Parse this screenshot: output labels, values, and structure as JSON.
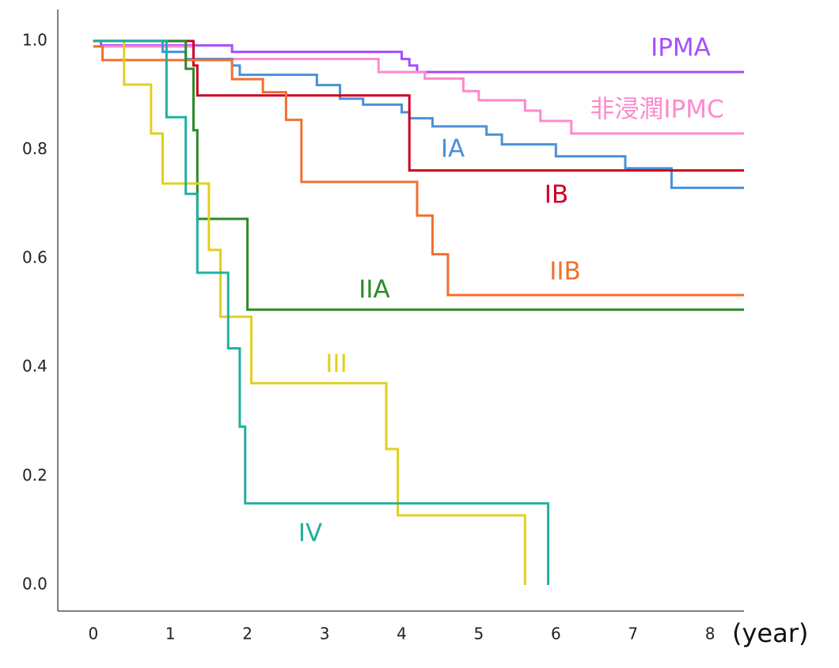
{
  "chart_data": {
    "type": "step-line",
    "x_label": "(year)",
    "xlim": [
      -0.46,
      8.44
    ],
    "ylim": [
      -0.048,
      1.058
    ],
    "xticks": [
      0,
      1,
      2,
      3,
      4,
      5,
      6,
      7,
      8
    ],
    "yticks": [
      {
        "value": 0,
        "label": "0.0"
      },
      0.2,
      0.4,
      0.6,
      0.8,
      {
        "value": 1,
        "label": "1.0"
      }
    ],
    "series": [
      {
        "name": "IPMA",
        "color": "#a64dff",
        "x": [
          0,
          0.1,
          1.8,
          4.0,
          4.1,
          4.2,
          8.44
        ],
        "values": [
          1.0,
          0.992,
          0.98,
          0.967,
          0.955,
          0.943,
          0.943
        ]
      },
      {
        "name": "非浸潤IPMC",
        "color": "#ff88cc",
        "x": [
          0,
          1.3,
          3.7,
          4.3,
          4.8,
          5.0,
          5.6,
          5.8,
          6.2,
          8.44
        ],
        "values": [
          0.99,
          0.967,
          0.943,
          0.931,
          0.908,
          0.891,
          0.872,
          0.853,
          0.83,
          0.83
        ]
      },
      {
        "name": "IA",
        "color": "#4a90d9",
        "x": [
          0,
          0.9,
          1.2,
          1.8,
          1.9,
          2.9,
          3.2,
          3.5,
          4.0,
          4.1,
          4.4,
          5.1,
          5.3,
          6.0,
          6.9,
          7.5,
          8.44
        ],
        "values": [
          1.0,
          0.98,
          0.967,
          0.955,
          0.938,
          0.919,
          0.894,
          0.883,
          0.869,
          0.858,
          0.843,
          0.828,
          0.81,
          0.788,
          0.766,
          0.73,
          0.73
        ]
      },
      {
        "name": "IB",
        "color": "#cc0022",
        "x": [
          0,
          1.3,
          1.35,
          4.1,
          8.44
        ],
        "values": [
          1.0,
          0.955,
          0.9,
          0.762,
          0.762
        ]
      },
      {
        "name": "IIB",
        "color": "#f07030",
        "x": [
          0,
          0.12,
          1.8,
          2.2,
          2.5,
          2.7,
          4.2,
          4.4,
          4.6,
          8.44
        ],
        "values": [
          0.99,
          0.965,
          0.93,
          0.906,
          0.855,
          0.741,
          0.679,
          0.608,
          0.533,
          0.533
        ]
      },
      {
        "name": "IIA",
        "color": "#2a8a2a",
        "x": [
          0,
          1.2,
          1.3,
          1.35,
          2.0,
          8.44
        ],
        "values": [
          1.0,
          0.949,
          0.836,
          0.673,
          0.506,
          0.506
        ]
      },
      {
        "name": "III",
        "color": "#e0d020",
        "x": [
          0,
          0.4,
          0.75,
          0.9,
          1.5,
          1.65,
          2.05,
          3.8,
          3.95,
          5.6
        ],
        "values": [
          1.0,
          0.92,
          0.83,
          0.738,
          0.616,
          0.493,
          0.371,
          0.25,
          0.128,
          0
        ]
      },
      {
        "name": "IV",
        "color": "#20b0a0",
        "x": [
          0,
          0.95,
          1.2,
          1.35,
          1.75,
          1.9,
          1.97,
          5.9
        ],
        "values": [
          1.0,
          0.86,
          0.719,
          0.574,
          0.435,
          0.291,
          0.15,
          0
        ]
      }
    ]
  }
}
